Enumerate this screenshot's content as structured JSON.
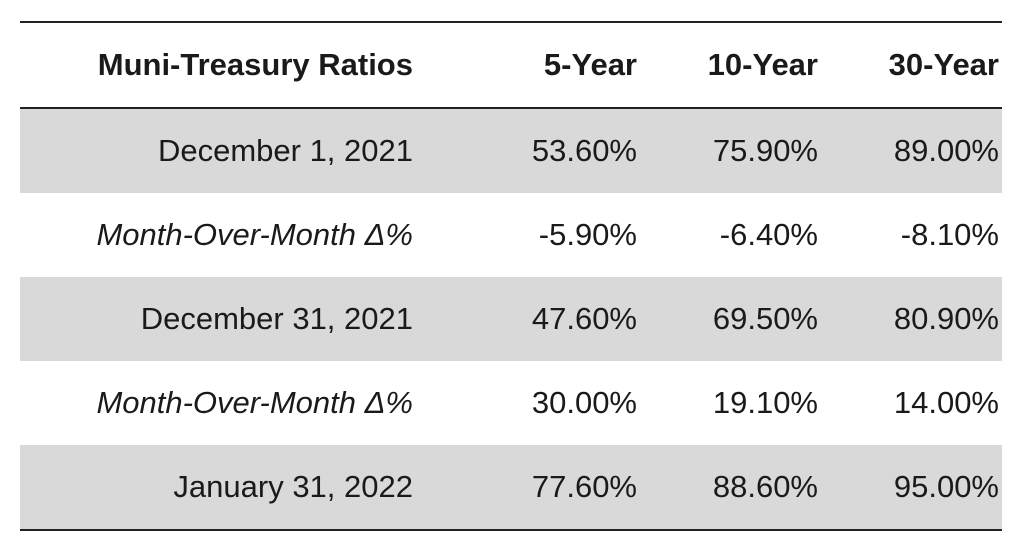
{
  "header": {
    "label": "Muni-Treasury Ratios",
    "columns": [
      "5-Year",
      "10-Year",
      "30-Year"
    ]
  },
  "rows": [
    {
      "label": "December 1, 2021",
      "values": [
        "53.60%",
        "75.90%",
        "89.00%"
      ],
      "italic": false,
      "shaded": true
    },
    {
      "label": "Month-Over-Month Δ%",
      "values": [
        "-5.90%",
        "-6.40%",
        "-8.10%"
      ],
      "italic": true,
      "shaded": false
    },
    {
      "label": "December 31, 2021",
      "values": [
        "47.60%",
        "69.50%",
        "80.90%"
      ],
      "italic": false,
      "shaded": true
    },
    {
      "label": "Month-Over-Month Δ%",
      "values": [
        "30.00%",
        "19.10%",
        "14.00%"
      ],
      "italic": true,
      "shaded": false
    },
    {
      "label": "January 31, 2022",
      "values": [
        "77.60%",
        "88.60%",
        "95.00%"
      ],
      "italic": false,
      "shaded": true
    }
  ],
  "colors": {
    "shade": "#d9d9d9",
    "rule": "#222222",
    "text": "#1a1a1a"
  }
}
